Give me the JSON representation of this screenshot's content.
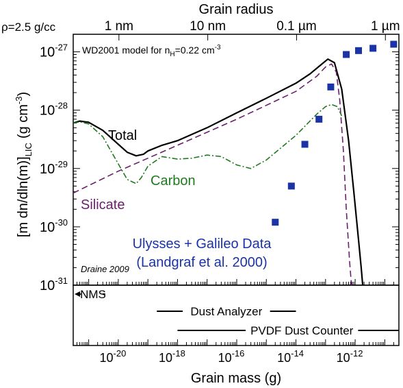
{
  "chart_data": {
    "type": "line",
    "x_scale": "log",
    "y_scale": "log",
    "xlabel": "Grain mass (g)",
    "ylabel": "[m dn/dln(m)]",
    "ylabel_sub": "LIC",
    "ylabel_unit": "(g cm",
    "ylabel_unit_sup": "-3",
    "ylabel_unit_close": ")",
    "top_axis_label": "Grain radius",
    "density_note": "ρ=2.5 g/cc",
    "xlim": [
      3e-22,
      3e-11
    ],
    "ylim": [
      1e-31,
      2e-27
    ],
    "x_tick_labels": [
      {
        "mant": "10",
        "exp": "-20",
        "value": 1e-20
      },
      {
        "mant": "10",
        "exp": "-18",
        "value": 1e-18
      },
      {
        "mant": "10",
        "exp": "-16",
        "value": 1e-16
      },
      {
        "mant": "10",
        "exp": "-14",
        "value": 1e-14
      },
      {
        "mant": "10",
        "exp": "-12",
        "value": 1e-12
      }
    ],
    "y_tick_labels": [
      {
        "mant": "10",
        "exp": "-27",
        "value": 1e-27
      },
      {
        "mant": "10",
        "exp": "-28",
        "value": 1e-28
      },
      {
        "mant": "10",
        "exp": "-29",
        "value": 1e-29
      },
      {
        "mant": "10",
        "exp": "-30",
        "value": 1e-30
      },
      {
        "mant": "10",
        "exp": "-31",
        "value": 1e-31
      }
    ],
    "top_tick_labels": [
      {
        "label": "1 nm",
        "mass": 1.05e-20
      },
      {
        "label": "10 nm",
        "mass": 1.05e-17
      },
      {
        "label": "0.1 µm",
        "mass": 1.05e-14
      },
      {
        "label": "1 µm",
        "mass": 1.05e-11
      }
    ],
    "annotations": {
      "model": "WD2001 model for n",
      "model_sub": "H",
      "model_rest": "=0.22 cm",
      "model_sup": "-3",
      "credit": "Draine 2009",
      "data_label_1": "Ulysses + Galileo Data",
      "data_label_2": "(Landgraf et al. 2000)"
    },
    "series": [
      {
        "name": "Total",
        "color": "#000000",
        "style": "solid",
        "x": [
          3e-22,
          5e-22,
          1e-21,
          3e-21,
          1e-20,
          2e-20,
          4e-20,
          7e-20,
          1e-19,
          3e-19,
          1e-18,
          1e-17,
          1e-16,
          1e-15,
          1e-14,
          3e-14,
          7e-14,
          1.2e-13,
          2e-13,
          3.5e-13,
          6e-13,
          9e-13,
          1.3e-12,
          1.6e-12,
          1.8e-12
        ],
        "y": [
          6e-29,
          6.5e-29,
          6.2e-29,
          4.5e-29,
          2.6e-29,
          1.9e-29,
          1.65e-29,
          1.75e-29,
          2e-29,
          2.5e-29,
          3e-29,
          5e-29,
          9e-29,
          1.6e-28,
          2.9e-28,
          4.2e-28,
          6e-28,
          7.5e-28,
          6.5e-28,
          2.3e-28,
          3e-29,
          4e-30,
          6e-31,
          2e-31,
          1e-31
        ]
      },
      {
        "name": "Silicate",
        "color": "#6b1f6b",
        "style": "dashed",
        "x": [
          3e-22,
          1e-20,
          1e-18,
          1e-16,
          1e-14,
          5e-14,
          1e-13,
          1.6e-13,
          2.3e-13,
          3e-13,
          4e-13,
          5e-13,
          6.5e-13,
          7.5e-13
        ],
        "y": [
          3.8e-30,
          9e-30,
          2.5e-29,
          7e-29,
          2.1e-28,
          3.8e-28,
          5.5e-28,
          6.2e-28,
          4.5e-28,
          1.5e-28,
          2e-29,
          2e-30,
          2.5e-31,
          1e-31
        ]
      },
      {
        "name": "Carbon",
        "color": "#1f7a1f",
        "style": "dashdot",
        "x": [
          3e-22,
          5e-22,
          1e-21,
          3e-21,
          1e-20,
          2e-20,
          4e-20,
          6e-20,
          1e-19,
          3e-19,
          1e-18,
          3e-18,
          1e-17,
          3e-17,
          1e-16,
          3e-16,
          1e-15,
          1e-14,
          5e-14,
          1e-13,
          1.6e-13,
          2.5e-13,
          3.5e-13
        ],
        "y": [
          6e-29,
          6.3e-29,
          5.8e-29,
          3.5e-29,
          1.2e-29,
          6.5e-30,
          5.5e-30,
          7e-30,
          1.1e-29,
          1.6e-29,
          1.45e-29,
          1.5e-29,
          1.7e-29,
          1.6e-29,
          1.15e-29,
          1e-29,
          1.4e-29,
          3.7e-29,
          8.5e-29,
          1.15e-28,
          1.25e-28,
          1.15e-28,
          8e-29
        ]
      },
      {
        "name": "Ulysses + Galileo Data",
        "color": "#1a33a6",
        "style": "squares",
        "x": [
          2e-15,
          7e-15,
          2e-14,
          6e-14,
          1.5e-13,
          5e-13,
          1.3e-12,
          4e-12,
          2e-11
        ],
        "y": [
          1.2e-30,
          5e-30,
          2.6e-29,
          7e-29,
          2.5e-28,
          9e-28,
          1.05e-27,
          1.15e-27,
          1.35e-27
        ]
      }
    ],
    "instruments": [
      {
        "name": "NMS",
        "xmin": 3e-22,
        "xmax": 3e-21,
        "left_arrow": true
      },
      {
        "name": "Dust Analyzer",
        "xmin": 2e-19,
        "xmax": 1e-14,
        "left_arrow": false
      },
      {
        "name": "PVDF Dust Counter",
        "xmin": 1e-18,
        "xmax": 3e-11,
        "left_arrow": false
      }
    ]
  }
}
